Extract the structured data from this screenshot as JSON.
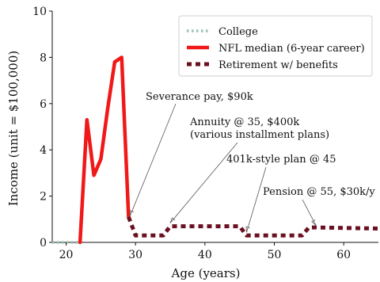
{
  "chart_data": {
    "type": "line",
    "xlabel": "Age (years)",
    "ylabel": "Income (unit = $100,000)",
    "xlim": [
      18,
      65
    ],
    "ylim": [
      0,
      10
    ],
    "xticks": [
      20,
      30,
      40,
      50,
      60
    ],
    "yticks": [
      0,
      2,
      4,
      6,
      8,
      10
    ],
    "grid": false,
    "legend_position": "top-right",
    "series": [
      {
        "name": "College",
        "style": "dotted",
        "color": "#9dbfb6",
        "x": [
          18,
          22
        ],
        "y": [
          0,
          0
        ]
      },
      {
        "name": "NFL median (6-year career)",
        "style": "solid",
        "color": "#f01818",
        "x": [
          22,
          23,
          24,
          25,
          26,
          27,
          28,
          29
        ],
        "y": [
          0,
          5.3,
          2.9,
          3.6,
          5.8,
          7.8,
          8.0,
          1.1
        ]
      },
      {
        "name": "Retirement w/ benefits",
        "style": "dashed",
        "color": "#6a1020",
        "x": [
          29,
          30,
          34,
          35,
          45,
          46,
          54,
          55,
          65
        ],
        "y": [
          1.1,
          0.3,
          0.3,
          0.7,
          0.7,
          0.3,
          0.3,
          0.65,
          0.6
        ]
      }
    ],
    "annotations": [
      {
        "text": "Severance pay, $90k",
        "x": 29.2,
        "y": 1.0
      },
      {
        "text": "Annuity @ 35, $400k",
        "text2": "(various installment plans)",
        "x": 35,
        "y": 0.7
      },
      {
        "text": "401k-style plan @ 45",
        "x": 46,
        "y": 0.3
      },
      {
        "text": "Pension @ 55, $30k/y",
        "x": 56,
        "y": 0.6
      }
    ]
  }
}
